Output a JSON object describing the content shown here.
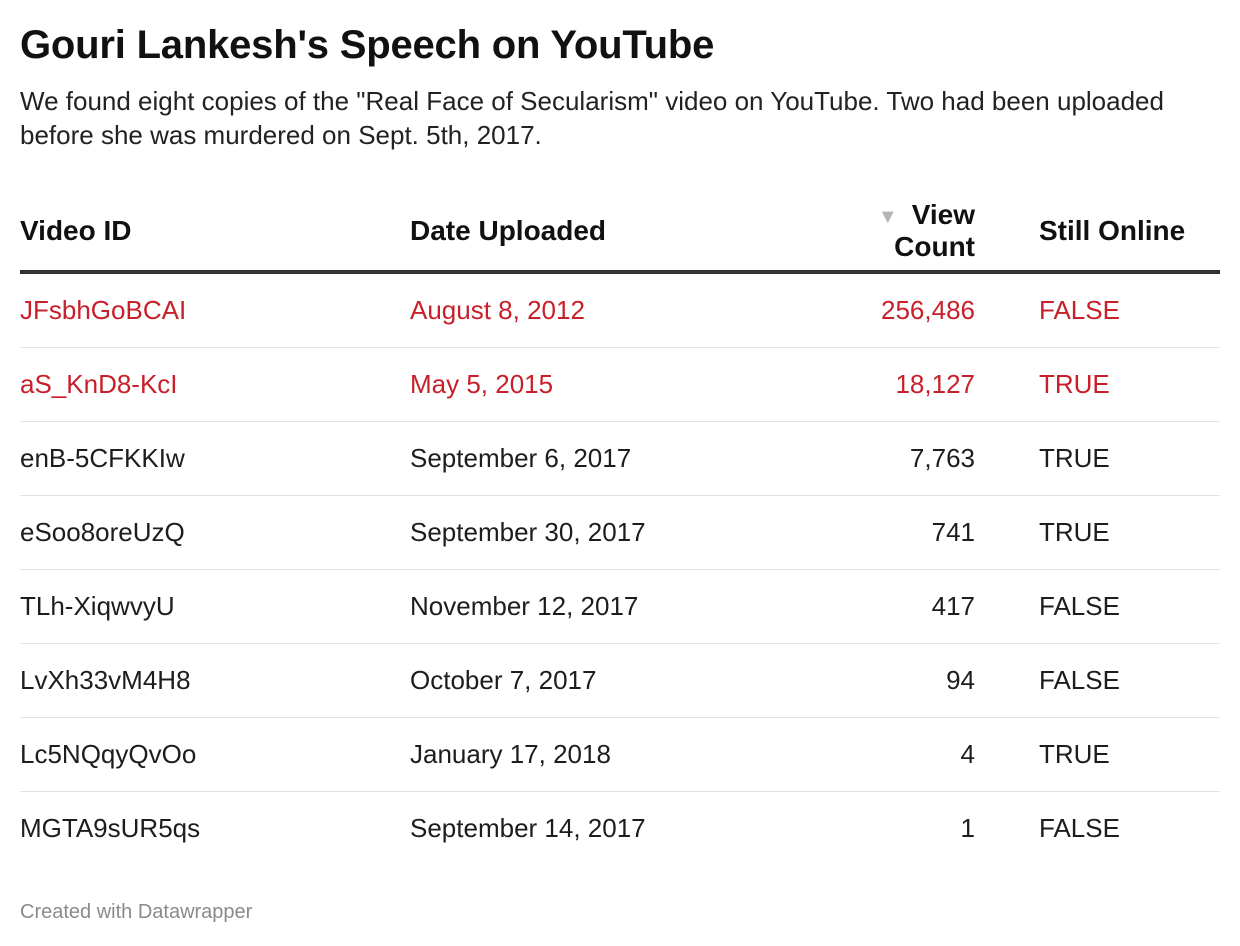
{
  "title": "Gouri Lankesh's Speech on YouTube",
  "intro": "We found eight copies of the \"Real Face of Secularism\" video on YouTube. Two had been uploaded before she was murdered on Sept. 5th, 2017.",
  "footer": "Created with Datawrapper",
  "colors": {
    "highlight": "#c8202a",
    "text": "#1d1d1d",
    "header_rule": "#333333",
    "row_rule": "#e3e3e3",
    "footer": "#8a8a8a"
  },
  "sort": {
    "column": "View Count",
    "direction": "descending",
    "icon": "sort-descending-icon"
  },
  "chart_data": {
    "type": "table",
    "columns": [
      "Video ID",
      "Date Uploaded",
      "View Count",
      "Still Online"
    ],
    "rows": [
      {
        "video_id": "JFsbhGoBCAI",
        "date": "August 8, 2012",
        "views": "256,486",
        "still_online": "FALSE",
        "highlight": true
      },
      {
        "video_id": "aS_KnD8-KcI",
        "date": "May 5, 2015",
        "views": "18,127",
        "still_online": "TRUE",
        "highlight": true
      },
      {
        "video_id": "enB-5CFKKIw",
        "date": "September 6, 2017",
        "views": "7,763",
        "still_online": "TRUE",
        "highlight": false
      },
      {
        "video_id": "eSoo8oreUzQ",
        "date": "September 30, 2017",
        "views": "741",
        "still_online": "TRUE",
        "highlight": false
      },
      {
        "video_id": "TLh-XiqwvyU",
        "date": "November 12, 2017",
        "views": "417",
        "still_online": "FALSE",
        "highlight": false
      },
      {
        "video_id": "LvXh33vM4H8",
        "date": "October 7, 2017",
        "views": "94",
        "still_online": "FALSE",
        "highlight": false
      },
      {
        "video_id": "Lc5NQqyQvOo",
        "date": "January 17, 2018",
        "views": "4",
        "still_online": "TRUE",
        "highlight": false
      },
      {
        "video_id": "MGTA9sUR5qs",
        "date": "September 14, 2017",
        "views": "1",
        "still_online": "FALSE",
        "highlight": false
      }
    ]
  }
}
